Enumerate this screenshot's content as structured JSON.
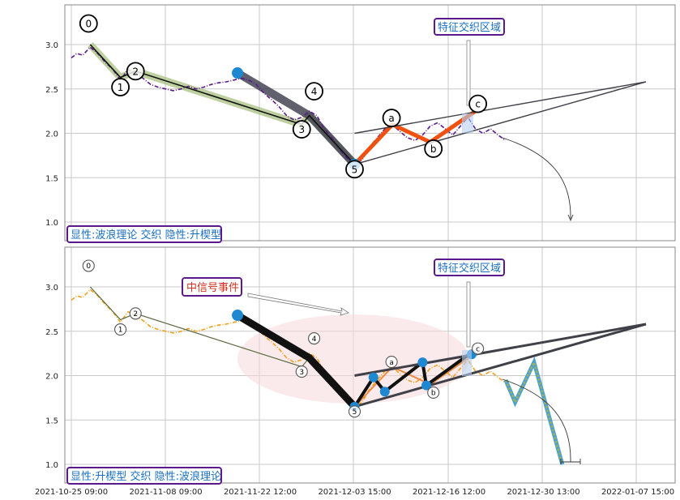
{
  "chart_data": [
    {
      "type": "line",
      "panel": "top",
      "ylim": [
        0.8,
        3.45
      ],
      "yticks": [
        "1.0",
        "1.5",
        "2.0",
        "2.5",
        "3.0"
      ],
      "ytick_values": [
        1.0,
        1.5,
        2.0,
        2.5,
        3.0
      ],
      "grid": true,
      "price_series": [
        [
          0,
          2.85
        ],
        [
          0.03,
          2.9
        ],
        [
          0.06,
          2.88
        ],
        [
          0.1,
          2.97
        ],
        [
          0.14,
          2.9
        ],
        [
          0.18,
          2.8
        ],
        [
          0.22,
          2.72
        ],
        [
          0.26,
          2.6
        ],
        [
          0.3,
          2.72
        ],
        [
          0.34,
          2.68
        ],
        [
          0.38,
          2.62
        ],
        [
          0.42,
          2.55
        ],
        [
          0.46,
          2.52
        ],
        [
          0.5,
          2.5
        ],
        [
          0.54,
          2.48
        ],
        [
          0.58,
          2.5
        ],
        [
          0.62,
          2.53
        ],
        [
          0.66,
          2.5
        ],
        [
          0.7,
          2.52
        ],
        [
          0.74,
          2.55
        ],
        [
          0.78,
          2.57
        ],
        [
          0.82,
          2.58
        ],
        [
          0.86,
          2.6
        ],
        [
          0.9,
          2.62
        ],
        [
          0.94,
          2.6
        ],
        [
          0.98,
          2.55
        ],
        [
          1.02,
          2.45
        ],
        [
          1.06,
          2.38
        ],
        [
          1.1,
          2.3
        ],
        [
          1.14,
          2.2
        ],
        [
          1.18,
          2.15
        ],
        [
          1.22,
          2.18
        ],
        [
          1.26,
          2.25
        ],
        [
          1.3,
          2.2
        ],
        [
          1.34,
          2.05
        ],
        [
          1.38,
          1.95
        ],
        [
          1.42,
          1.82
        ],
        [
          1.46,
          1.72
        ],
        [
          1.5,
          1.65
        ],
        [
          1.54,
          1.7
        ],
        [
          1.58,
          1.85
        ],
        [
          1.62,
          1.95
        ],
        [
          1.66,
          2.05
        ],
        [
          1.7,
          2.1
        ],
        [
          1.74,
          2.02
        ],
        [
          1.78,
          1.95
        ],
        [
          1.82,
          1.92
        ],
        [
          1.86,
          1.98
        ],
        [
          1.9,
          2.08
        ],
        [
          1.94,
          2.12
        ],
        [
          1.98,
          2.05
        ],
        [
          2.02,
          1.98
        ],
        [
          2.06,
          2.08
        ],
        [
          2.1,
          2.18
        ],
        [
          2.14,
          2.05
        ],
        [
          2.18,
          2.0
        ],
        [
          2.22,
          2.05
        ],
        [
          2.26,
          1.98
        ],
        [
          2.3,
          1.92
        ]
      ],
      "wave_points": [
        {
          "label": "0",
          "x": 0.1,
          "y": 3.0
        },
        {
          "label": "1",
          "x": 0.26,
          "y": 2.63
        },
        {
          "label": "2",
          "x": 0.34,
          "y": 2.7
        },
        {
          "label": "3",
          "x": 1.22,
          "y": 2.1
        },
        {
          "label": "4",
          "x": 1.26,
          "y": 2.2
        },
        {
          "label": "5",
          "x": 1.5,
          "y": 1.65
        },
        {
          "label": "a",
          "x": 1.7,
          "y": 2.1
        },
        {
          "label": "b",
          "x": 1.9,
          "y": 1.9
        },
        {
          "label": "c",
          "x": 2.14,
          "y": 2.25
        }
      ],
      "annotations": {
        "pattern_label": "显性:波浪理论 交织 隐性:升楔型",
        "zone_label": "特征交织区域"
      }
    },
    {
      "type": "line",
      "panel": "bottom",
      "ylim": [
        0.8,
        3.45
      ],
      "yticks": [
        "1.0",
        "1.5",
        "2.0",
        "2.5",
        "3.0"
      ],
      "ytick_values": [
        1.0,
        1.5,
        2.0,
        2.5,
        3.0
      ],
      "grid": true,
      "xticks": [
        "2021-10-25 09:00",
        "2021-11-08 09:00",
        "2021-11-22 12:00",
        "2021-12-03 15:00",
        "2021-12-16 12:00",
        "2021-12-30 13:00",
        "2022-01-07 15:00"
      ],
      "xtick_values": [
        0,
        0.5,
        1.0,
        1.5,
        2.0,
        2.5,
        3.0
      ],
      "wave_points": [
        {
          "label": "0",
          "x": 0.1,
          "y": 3.0
        },
        {
          "label": "1",
          "x": 0.26,
          "y": 2.63
        },
        {
          "label": "2",
          "x": 0.34,
          "y": 2.7
        },
        {
          "label": "3",
          "x": 1.22,
          "y": 2.1
        },
        {
          "label": "4",
          "x": 1.26,
          "y": 2.2
        },
        {
          "label": "5",
          "x": 1.5,
          "y": 1.65
        },
        {
          "label": "a",
          "x": 1.7,
          "y": 2.1
        },
        {
          "label": "b",
          "x": 1.9,
          "y": 1.9
        },
        {
          "label": "c",
          "x": 2.14,
          "y": 2.25
        }
      ],
      "projection_zigzag": [
        [
          2.3,
          1.95
        ],
        [
          2.35,
          1.7
        ],
        [
          2.45,
          2.15
        ],
        [
          2.6,
          1.0
        ]
      ],
      "annotations": {
        "pattern_label": "显性:升楔型 交织 隐性:波浪理论",
        "zone_label": "特征交织区域",
        "signal_label": "中信号事件"
      }
    }
  ],
  "colors": {
    "purple_series": "#5a1a8c",
    "orange_series": "#f0a020",
    "wave_highlight": "#a8c080",
    "wave_line": "#111111",
    "correction": "#f05010",
    "wedge": "#404048",
    "node_blue": "#1e88d0",
    "badge_border": "#5a1a8c",
    "badge_text": "#1a6fc0",
    "signal_text": "#d03020",
    "ellipse": "#f8d8dc"
  }
}
